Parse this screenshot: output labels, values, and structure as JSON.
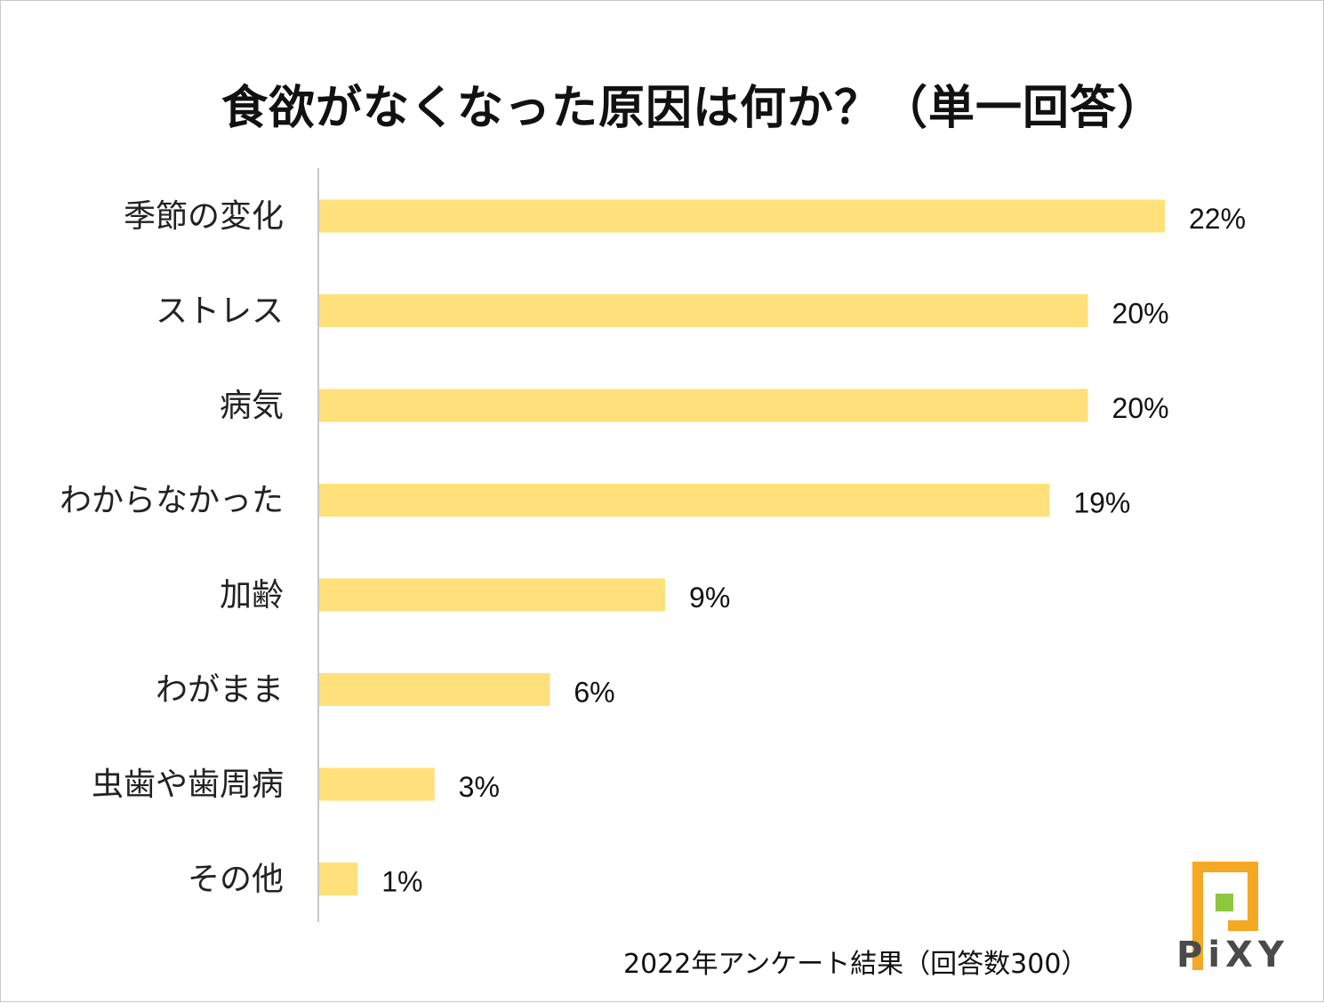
{
  "chart_data": {
    "type": "bar",
    "orientation": "horizontal",
    "title": "食欲がなくなった原因は何か？（単一回答）",
    "categories": [
      "季節の変化",
      "ストレス",
      "病気",
      "わからなかった",
      "加齢",
      "わがまま",
      "虫歯や歯周病",
      "その他"
    ],
    "values": [
      22,
      20,
      20,
      19,
      9,
      6,
      3,
      1
    ],
    "value_labels": [
      "22%",
      "20%",
      "20%",
      "19%",
      "9%",
      "6%",
      "3%",
      "1%"
    ],
    "unit": "%",
    "xlim": [
      0,
      22
    ],
    "bar_color": "#FFE07A",
    "grid": false,
    "legend": "none"
  },
  "footer": "2022年アンケート結果（回答数300）",
  "brand": {
    "name": "PiXY",
    "icon": "pixy-logo-icon",
    "colors": {
      "orange": "#F5A823",
      "green": "#8DC63F"
    }
  }
}
